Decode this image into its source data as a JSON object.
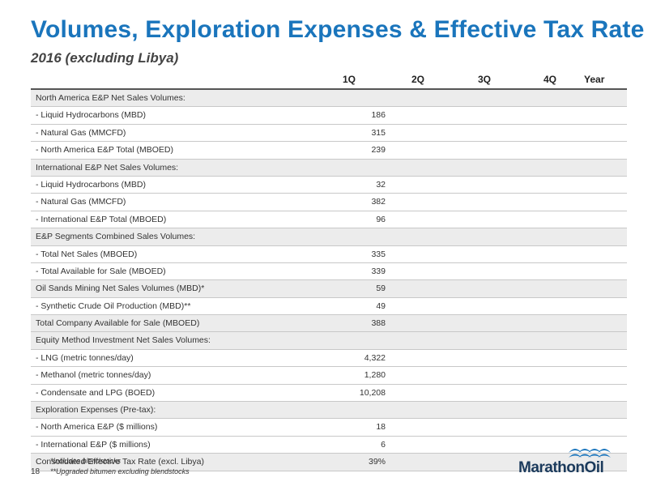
{
  "title": "Volumes, Exploration Expenses & Effective Tax Rate",
  "subtitle": "2016 (excluding Libya)",
  "columns": [
    "1Q",
    "2Q",
    "3Q",
    "4Q",
    "Year"
  ],
  "rows": [
    {
      "label": "North America E&P Net Sales Volumes:",
      "q1": "",
      "section": true
    },
    {
      "label": " - Liquid Hydrocarbons (MBD)",
      "q1": "186"
    },
    {
      "label": " - Natural Gas (MMCFD)",
      "q1": "315"
    },
    {
      "label": " - North America  E&P Total (MBOED)",
      "q1": "239"
    },
    {
      "label": "International E&P Net Sales Volumes:",
      "q1": "",
      "section": true
    },
    {
      "label": " - Liquid Hydrocarbons (MBD)",
      "q1": "32"
    },
    {
      "label": " - Natural Gas (MMCFD)",
      "q1": "382"
    },
    {
      "label": " - International  E&P Total (MBOED)",
      "q1": "96"
    },
    {
      "label": "E&P Segments Combined Sales Volumes:",
      "q1": "",
      "section": true
    },
    {
      "label": " - Total Net Sales (MBOED)",
      "q1": "335"
    },
    {
      "label": " - Total Available for Sale (MBOED)",
      "q1": "339"
    },
    {
      "label": "Oil Sands Mining Net Sales Volumes (MBD)*",
      "q1": "59",
      "section": true
    },
    {
      "label": " - Synthetic Crude Oil Production (MBD)**",
      "q1": "49"
    },
    {
      "label": "Total Company Available for Sale (MBOED)",
      "q1": "388",
      "section": true
    },
    {
      "label": "Equity Method Investment Net Sales Volumes:",
      "q1": "",
      "section": true
    },
    {
      "label": " - LNG (metric tonnes/day)",
      "q1": "4,322"
    },
    {
      "label": " - Methanol (metric tonnes/day)",
      "q1": "1,280"
    },
    {
      "label": " - Condensate and LPG (BOED)",
      "q1": "10,208"
    },
    {
      "label": "Exploration Expenses (Pre-tax):",
      "q1": "",
      "section": true
    },
    {
      "label": " - North America E&P ($ millions)",
      "q1": "18"
    },
    {
      "label": " - International  E&P ($ millions)",
      "q1": "6"
    },
    {
      "label": "Consolidated Effective Tax Rate (excl. Libya)",
      "q1": "39%",
      "section": true
    }
  ],
  "page_number": "18",
  "footnotes": [
    "*Includes blendstocks",
    "**Upgraded bitumen excluding blendstocks"
  ],
  "logo_text": "MarathonOil",
  "colors": {
    "title": "#1a75bc",
    "logo_blue": "#1a75bc",
    "logo_navy": "#1b3a5c"
  }
}
